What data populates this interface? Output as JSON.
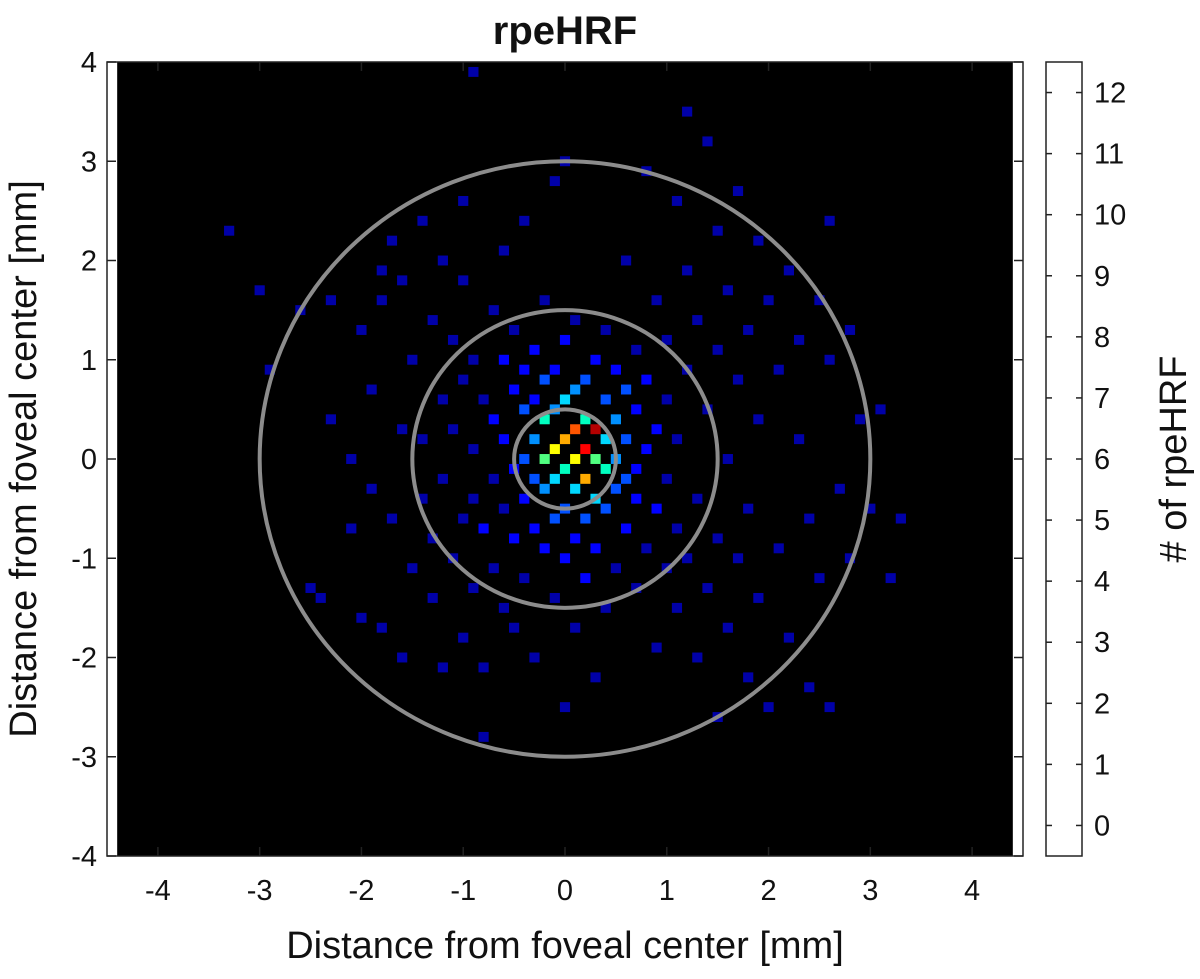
{
  "chart_data": {
    "type": "heatmap",
    "title": "rpeHRF",
    "xlabel": "Distance from foveal center [mm]",
    "ylabel": "Distance from foveal center [mm]",
    "colorbar_label": "# of rpeHRF",
    "xlim": [
      -4.5,
      4.5
    ],
    "ylim": [
      -4,
      4
    ],
    "xticks": [
      -4,
      -3,
      -2,
      -1,
      0,
      1,
      2,
      3,
      4
    ],
    "yticks": [
      -4,
      -3,
      -2,
      -1,
      0,
      1,
      2,
      3,
      4
    ],
    "xtick_labels": [
      "-4",
      "-3",
      "-2",
      "-1",
      "0",
      "1",
      "2",
      "3",
      "4"
    ],
    "ytick_labels": [
      "-4",
      "-3",
      "-2",
      "-1",
      "0",
      "1",
      "2",
      "3",
      "4"
    ],
    "data_xlim": [
      -4.4,
      4.4
    ],
    "bin_size_mm": 0.1,
    "background_color": "#000000",
    "circle_color": "#8c8c8c",
    "circle_radii_mm": [
      0.5,
      1.5,
      3.0
    ],
    "colorbar_levels": [
      0,
      1,
      2,
      3,
      4,
      5,
      6,
      7,
      8,
      9,
      10,
      11,
      12
    ],
    "colorbar_tick_labels": [
      "0",
      "1",
      "2",
      "3",
      "4",
      "5",
      "6",
      "7",
      "8",
      "9",
      "10",
      "11",
      "12"
    ],
    "colorbar_colors": [
      "#000000",
      "#0000a8",
      "#0000ff",
      "#0050ff",
      "#0090ff",
      "#00d8ff",
      "#00ffc0",
      "#50ff80",
      "#ffff00",
      "#ffaa00",
      "#ff5500",
      "#ff0000",
      "#b40000"
    ],
    "cells": [
      [
        -3.3,
        2.3,
        1
      ],
      [
        -3.0,
        1.7,
        1
      ],
      [
        -2.9,
        0.9,
        1
      ],
      [
        -2.6,
        1.5,
        1
      ],
      [
        -2.5,
        -1.3,
        1
      ],
      [
        -2.4,
        -1.4,
        1
      ],
      [
        -2.3,
        0.4,
        1
      ],
      [
        -2.3,
        1.6,
        1
      ],
      [
        -2.1,
        0.0,
        1
      ],
      [
        -2.1,
        -0.7,
        1
      ],
      [
        -2.0,
        1.3,
        1
      ],
      [
        -2.0,
        -1.6,
        1
      ],
      [
        -1.9,
        0.7,
        1
      ],
      [
        -1.9,
        -0.3,
        1
      ],
      [
        -1.8,
        1.9,
        1
      ],
      [
        -1.8,
        1.6,
        1
      ],
      [
        -1.8,
        -1.7,
        1
      ],
      [
        -1.7,
        2.2,
        1
      ],
      [
        -1.7,
        -0.6,
        1
      ],
      [
        -1.6,
        1.8,
        1
      ],
      [
        -1.6,
        0.3,
        1
      ],
      [
        -1.6,
        -2.0,
        1
      ],
      [
        -1.5,
        1.0,
        1
      ],
      [
        -1.5,
        -1.1,
        1
      ],
      [
        -1.4,
        2.4,
        1
      ],
      [
        -1.4,
        0.2,
        1
      ],
      [
        -1.4,
        -0.4,
        1
      ],
      [
        -1.3,
        1.4,
        1
      ],
      [
        -1.3,
        -1.4,
        1
      ],
      [
        -1.3,
        -0.8,
        1
      ],
      [
        -1.2,
        2.0,
        1
      ],
      [
        -1.2,
        0.6,
        1
      ],
      [
        -1.2,
        -0.2,
        1
      ],
      [
        -1.2,
        -2.1,
        1
      ],
      [
        -1.1,
        1.2,
        1
      ],
      [
        -1.1,
        0.3,
        1
      ],
      [
        -1.1,
        -1.0,
        1
      ],
      [
        -1.0,
        2.6,
        1
      ],
      [
        -1.0,
        1.8,
        1
      ],
      [
        -1.0,
        0.8,
        1
      ],
      [
        -1.0,
        -0.6,
        1
      ],
      [
        -1.0,
        -1.8,
        1
      ],
      [
        -0.9,
        1.0,
        1
      ],
      [
        -0.9,
        0.1,
        1
      ],
      [
        -0.9,
        -0.4,
        1
      ],
      [
        -0.9,
        -1.3,
        1
      ],
      [
        -0.9,
        3.9,
        1
      ],
      [
        -0.8,
        0.6,
        1
      ],
      [
        -0.8,
        -0.7,
        2
      ],
      [
        -0.8,
        -2.1,
        1
      ],
      [
        -0.8,
        -2.8,
        1
      ],
      [
        -0.7,
        1.5,
        1
      ],
      [
        -0.7,
        0.4,
        2
      ],
      [
        -0.7,
        -0.2,
        1
      ],
      [
        -0.7,
        -1.1,
        1
      ],
      [
        -0.6,
        2.1,
        1
      ],
      [
        -0.6,
        1.0,
        2
      ],
      [
        -0.6,
        0.2,
        2
      ],
      [
        -0.6,
        -0.5,
        1
      ],
      [
        -0.6,
        -1.5,
        1
      ],
      [
        -0.5,
        1.3,
        1
      ],
      [
        -0.5,
        0.7,
        2
      ],
      [
        -0.5,
        -0.1,
        2
      ],
      [
        -0.5,
        -0.8,
        2
      ],
      [
        -0.5,
        -1.7,
        1
      ],
      [
        -0.4,
        2.4,
        1
      ],
      [
        -0.4,
        0.9,
        2
      ],
      [
        -0.4,
        0.5,
        3
      ],
      [
        -0.4,
        0.0,
        3
      ],
      [
        -0.4,
        -0.4,
        2
      ],
      [
        -0.4,
        -1.2,
        1
      ],
      [
        -0.3,
        1.1,
        2
      ],
      [
        -0.3,
        0.6,
        2
      ],
      [
        -0.3,
        0.2,
        4
      ],
      [
        -0.3,
        -0.2,
        3
      ],
      [
        -0.3,
        -0.7,
        2
      ],
      [
        -0.3,
        -2.0,
        1
      ],
      [
        -0.2,
        1.6,
        1
      ],
      [
        -0.2,
        0.8,
        3
      ],
      [
        -0.2,
        0.4,
        6
      ],
      [
        -0.2,
        0.0,
        7
      ],
      [
        -0.2,
        -0.3,
        4
      ],
      [
        -0.2,
        -0.9,
        2
      ],
      [
        -0.1,
        2.8,
        1
      ],
      [
        -0.1,
        0.9,
        2
      ],
      [
        -0.1,
        0.5,
        4
      ],
      [
        -0.1,
        0.1,
        8
      ],
      [
        -0.1,
        -0.2,
        5
      ],
      [
        -0.1,
        -0.6,
        3
      ],
      [
        -0.1,
        -1.4,
        1
      ],
      [
        0.0,
        3.0,
        1
      ],
      [
        0.0,
        1.2,
        2
      ],
      [
        0.0,
        0.6,
        5
      ],
      [
        0.0,
        0.2,
        9
      ],
      [
        0.0,
        -0.1,
        6
      ],
      [
        0.0,
        -0.5,
        3
      ],
      [
        0.0,
        -1.0,
        2
      ],
      [
        0.0,
        -2.5,
        1
      ],
      [
        0.1,
        1.4,
        1
      ],
      [
        0.1,
        0.7,
        4
      ],
      [
        0.1,
        0.3,
        10
      ],
      [
        0.1,
        0.0,
        8
      ],
      [
        0.1,
        -0.3,
        5
      ],
      [
        0.1,
        -0.8,
        2
      ],
      [
        0.1,
        -1.7,
        1
      ],
      [
        0.2,
        0.8,
        3
      ],
      [
        0.2,
        0.4,
        6
      ],
      [
        0.2,
        0.1,
        11
      ],
      [
        0.2,
        -0.2,
        9
      ],
      [
        0.2,
        -0.6,
        3
      ],
      [
        0.2,
        -1.2,
        2
      ],
      [
        0.3,
        1.0,
        2
      ],
      [
        0.3,
        0.3,
        12
      ],
      [
        0.3,
        0.0,
        7
      ],
      [
        0.3,
        -0.4,
        5
      ],
      [
        0.3,
        -0.9,
        2
      ],
      [
        0.3,
        -2.2,
        1
      ],
      [
        0.4,
        1.3,
        1
      ],
      [
        0.4,
        0.6,
        3
      ],
      [
        0.4,
        0.2,
        5
      ],
      [
        0.4,
        -0.1,
        6
      ],
      [
        0.4,
        -0.5,
        3
      ],
      [
        0.4,
        -1.5,
        1
      ],
      [
        0.5,
        0.9,
        2
      ],
      [
        0.5,
        0.4,
        4
      ],
      [
        0.5,
        0.0,
        4
      ],
      [
        0.5,
        -0.3,
        3
      ],
      [
        0.5,
        -1.1,
        1
      ],
      [
        0.6,
        2.0,
        1
      ],
      [
        0.6,
        0.7,
        3
      ],
      [
        0.6,
        0.2,
        3
      ],
      [
        0.6,
        -0.2,
        3
      ],
      [
        0.6,
        -0.7,
        2
      ],
      [
        0.7,
        1.1,
        1
      ],
      [
        0.7,
        0.5,
        2
      ],
      [
        0.7,
        -0.1,
        2
      ],
      [
        0.7,
        -0.4,
        2
      ],
      [
        0.7,
        -1.3,
        1
      ],
      [
        0.8,
        2.9,
        1
      ],
      [
        0.8,
        0.8,
        2
      ],
      [
        0.8,
        0.1,
        2
      ],
      [
        0.8,
        -0.9,
        1
      ],
      [
        0.9,
        1.6,
        1
      ],
      [
        0.9,
        0.3,
        2
      ],
      [
        0.9,
        -0.5,
        2
      ],
      [
        0.9,
        -1.9,
        1
      ],
      [
        1.0,
        1.2,
        1
      ],
      [
        1.0,
        0.6,
        1
      ],
      [
        1.0,
        -0.2,
        1
      ],
      [
        1.0,
        -1.1,
        1
      ],
      [
        1.1,
        2.6,
        1
      ],
      [
        1.1,
        0.2,
        1
      ],
      [
        1.1,
        -0.7,
        1
      ],
      [
        1.1,
        -1.5,
        1
      ],
      [
        1.2,
        3.5,
        1
      ],
      [
        1.2,
        1.9,
        1
      ],
      [
        1.2,
        0.9,
        1
      ],
      [
        1.2,
        -1.0,
        1
      ],
      [
        1.3,
        1.4,
        1
      ],
      [
        1.3,
        -0.4,
        1
      ],
      [
        1.3,
        -2.0,
        1
      ],
      [
        1.4,
        3.2,
        1
      ],
      [
        1.4,
        0.5,
        1
      ],
      [
        1.4,
        -1.3,
        1
      ],
      [
        1.5,
        2.3,
        1
      ],
      [
        1.5,
        1.1,
        1
      ],
      [
        1.5,
        -0.8,
        1
      ],
      [
        1.5,
        -2.6,
        1
      ],
      [
        1.6,
        1.7,
        1
      ],
      [
        1.6,
        0.0,
        1
      ],
      [
        1.6,
        -1.7,
        1
      ],
      [
        1.7,
        2.7,
        1
      ],
      [
        1.7,
        0.8,
        1
      ],
      [
        1.7,
        -1.0,
        1
      ],
      [
        1.8,
        1.3,
        1
      ],
      [
        1.8,
        -0.5,
        1
      ],
      [
        1.8,
        -2.2,
        1
      ],
      [
        1.9,
        2.2,
        1
      ],
      [
        1.9,
        0.4,
        1
      ],
      [
        1.9,
        -1.4,
        1
      ],
      [
        2.0,
        1.6,
        1
      ],
      [
        2.0,
        -2.5,
        1
      ],
      [
        2.1,
        0.9,
        1
      ],
      [
        2.1,
        -0.9,
        1
      ],
      [
        2.2,
        1.9,
        1
      ],
      [
        2.2,
        -1.8,
        1
      ],
      [
        2.3,
        1.2,
        1
      ],
      [
        2.3,
        0.2,
        1
      ],
      [
        2.4,
        -0.6,
        1
      ],
      [
        2.4,
        -2.3,
        1
      ],
      [
        2.5,
        1.6,
        1
      ],
      [
        2.5,
        -1.2,
        1
      ],
      [
        2.6,
        2.4,
        1
      ],
      [
        2.6,
        1.0,
        1
      ],
      [
        2.6,
        -2.5,
        1
      ],
      [
        2.7,
        -0.3,
        1
      ],
      [
        2.8,
        1.3,
        1
      ],
      [
        2.8,
        -1.0,
        1
      ],
      [
        2.9,
        0.4,
        1
      ],
      [
        3.0,
        -0.5,
        1
      ],
      [
        3.1,
        0.5,
        1
      ],
      [
        3.2,
        -1.2,
        1
      ],
      [
        3.3,
        -0.6,
        1
      ]
    ]
  }
}
